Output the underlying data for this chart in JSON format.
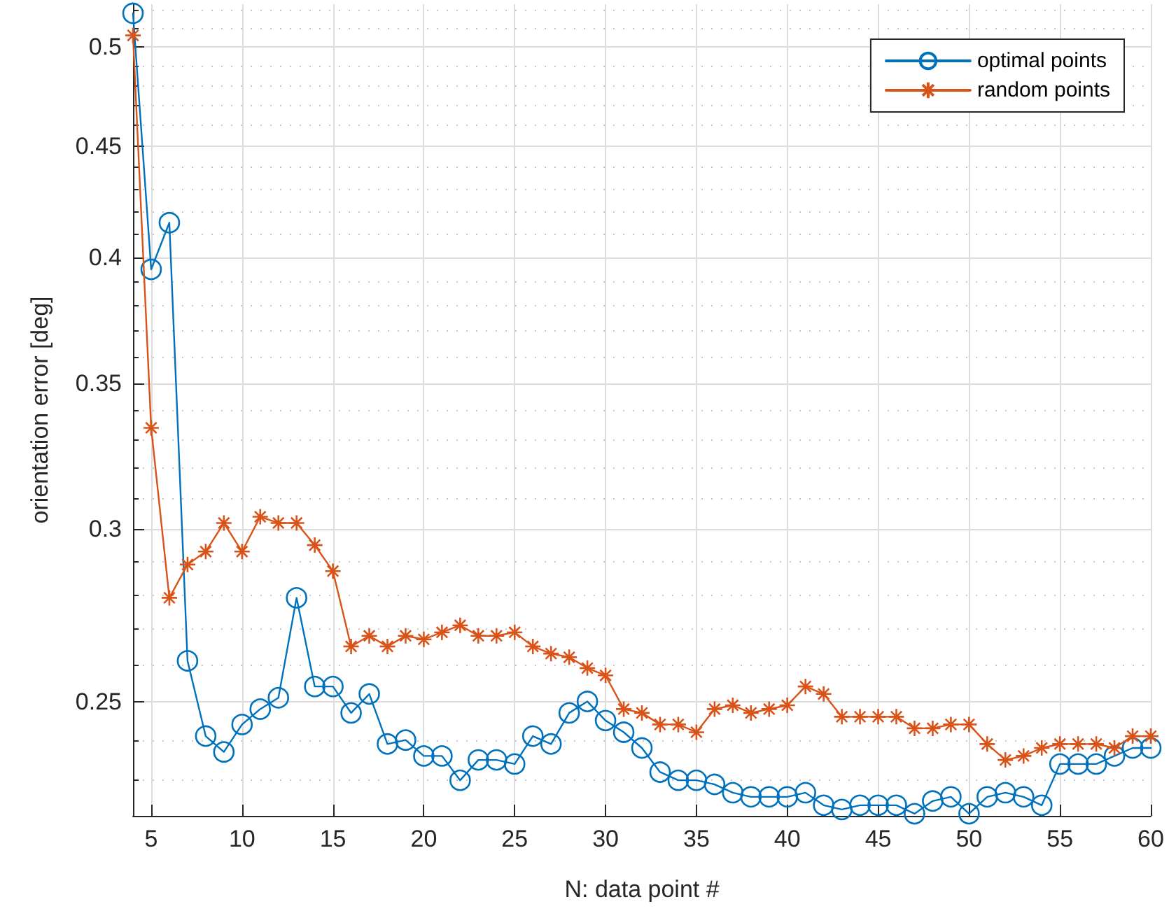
{
  "chart_data": {
    "type": "line",
    "xlabel": "N: data point #",
    "ylabel": "orientation error [deg]",
    "x": [
      4,
      5,
      6,
      7,
      8,
      9,
      10,
      11,
      12,
      13,
      14,
      15,
      16,
      17,
      18,
      19,
      20,
      21,
      22,
      23,
      24,
      25,
      26,
      27,
      28,
      29,
      30,
      31,
      32,
      33,
      34,
      35,
      36,
      37,
      38,
      39,
      40,
      41,
      42,
      43,
      44,
      45,
      46,
      47,
      48,
      49,
      50,
      51,
      52,
      53,
      54,
      55,
      56,
      57,
      58,
      59,
      60
    ],
    "series": [
      {
        "name": "optimal points",
        "color": "#0072bd",
        "marker": "circle",
        "values": [
          0.518,
          0.395,
          0.415,
          0.261,
          0.241,
          0.237,
          0.244,
          0.248,
          0.251,
          0.279,
          0.254,
          0.254,
          0.247,
          0.252,
          0.239,
          0.24,
          0.236,
          0.236,
          0.23,
          0.235,
          0.235,
          0.234,
          0.241,
          0.239,
          0.247,
          0.25,
          0.245,
          0.242,
          0.238,
          0.232,
          0.23,
          0.23,
          0.229,
          0.227,
          0.226,
          0.226,
          0.226,
          0.227,
          0.224,
          0.223,
          0.224,
          0.224,
          0.224,
          0.222,
          0.225,
          0.226,
          0.222,
          0.226,
          0.227,
          0.226,
          0.224,
          0.234,
          0.234,
          0.234,
          0.236,
          0.238,
          0.238
        ]
      },
      {
        "name": "random points",
        "color": "#d95319",
        "marker": "cross",
        "values": [
          0.506,
          0.334,
          0.279,
          0.289,
          0.293,
          0.302,
          0.293,
          0.304,
          0.302,
          0.302,
          0.295,
          0.287,
          0.265,
          0.268,
          0.265,
          0.268,
          0.267,
          0.269,
          0.271,
          0.268,
          0.268,
          0.269,
          0.265,
          0.263,
          0.262,
          0.259,
          0.257,
          0.248,
          0.247,
          0.244,
          0.244,
          0.242,
          0.248,
          0.249,
          0.247,
          0.248,
          0.249,
          0.254,
          0.252,
          0.246,
          0.246,
          0.246,
          0.246,
          0.243,
          0.243,
          0.244,
          0.244,
          0.239,
          0.235,
          0.236,
          0.238,
          0.239,
          0.239,
          0.239,
          0.238,
          0.241,
          0.241
        ]
      }
    ],
    "log": "y",
    "xlim": [
      4,
      60
    ],
    "xticks": [
      5,
      10,
      15,
      20,
      25,
      30,
      35,
      40,
      45,
      50,
      55,
      60
    ],
    "ylim": [
      0.2215,
      0.523
    ],
    "yticks": [
      {
        "value": 0.23,
        "label": null
      },
      {
        "value": 0.24,
        "label": null
      },
      0.25,
      {
        "value": 0.26,
        "label": null
      },
      {
        "value": 0.27,
        "label": null
      },
      {
        "value": 0.28,
        "label": null
      },
      {
        "value": 0.29,
        "label": null
      },
      0.3,
      {
        "value": 0.31,
        "label": null
      },
      {
        "value": 0.32,
        "label": null
      },
      {
        "value": 0.33,
        "label": null
      },
      {
        "value": 0.34,
        "label": null
      },
      0.35,
      {
        "value": 0.36,
        "label": null
      },
      {
        "value": 0.37,
        "label": null
      },
      {
        "value": 0.38,
        "label": null
      },
      {
        "value": 0.39,
        "label": null
      },
      0.4,
      {
        "value": 0.41,
        "label": null
      },
      {
        "value": 0.42,
        "label": null
      },
      {
        "value": 0.43,
        "label": null
      },
      {
        "value": 0.44,
        "label": null
      },
      0.45,
      {
        "value": 0.46,
        "label": null
      },
      {
        "value": 0.47,
        "label": null
      },
      {
        "value": 0.48,
        "label": null
      },
      {
        "value": 0.49,
        "label": null
      },
      0.5,
      {
        "value": 0.51,
        "label": null
      },
      {
        "value": 0.52,
        "label": null
      }
    ],
    "grid": true,
    "legend": "top right",
    "line_style": "solid"
  }
}
